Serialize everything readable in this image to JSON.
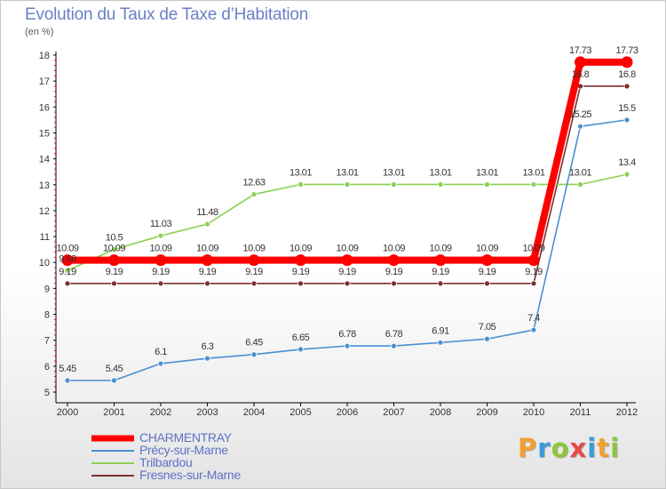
{
  "title": "Evolution du Taux de Taxe d’Habitation",
  "unit": "(en %)",
  "brand": {
    "letters": [
      "P",
      "r",
      "o",
      "x",
      "i",
      "t",
      "i"
    ],
    "colors": [
      "#f0a030",
      "#3b9ad8",
      "#8cc63e",
      "#e84a4a",
      "#3b9ad8",
      "#f0a030",
      "#8cc63e"
    ]
  },
  "chart_data": {
    "type": "line",
    "x": [
      2000,
      2001,
      2002,
      2003,
      2004,
      2005,
      2006,
      2007,
      2008,
      2009,
      2010,
      2011,
      2012
    ],
    "ylim": [
      5,
      18
    ],
    "yticks": [
      5,
      6,
      7,
      8,
      9,
      10,
      11,
      12,
      13,
      14,
      15,
      16,
      17,
      18
    ],
    "grid": false,
    "legend_position": "bottom-left",
    "series": [
      {
        "name": "Fresnes-sur-Marne",
        "color": "#7a2e2e",
        "values": [
          9.19,
          9.19,
          9.19,
          9.19,
          9.19,
          9.19,
          9.19,
          9.19,
          9.19,
          9.19,
          9.19,
          16.8,
          16.8
        ],
        "labels": [
          "9.19",
          "9.19",
          "9.19",
          "9.19",
          "9.19",
          "9.19",
          "9.19",
          "9.19",
          "9.19",
          "9.19",
          "9.19",
          "16.8",
          "16.8"
        ]
      },
      {
        "name": "Trilbardou",
        "color": "#8cd050",
        "values": [
          9.69,
          10.5,
          11.03,
          11.48,
          12.63,
          13.01,
          13.01,
          13.01,
          13.01,
          13.01,
          13.01,
          13.01,
          13.4
        ],
        "labels": [
          "9.69",
          "10.5",
          "11.03",
          "11.48",
          "12.63",
          "13.01",
          "13.01",
          "13.01",
          "13.01",
          "13.01",
          "13.01",
          "13.01",
          "13.4"
        ]
      },
      {
        "name": "Précy-sur-Marne",
        "color": "#4a8fd0",
        "values": [
          5.45,
          5.45,
          6.1,
          6.3,
          6.45,
          6.65,
          6.78,
          6.78,
          6.91,
          7.05,
          7.4,
          15.25,
          15.5
        ],
        "labels": [
          "5.45",
          "5.45",
          "6.1",
          "6.3",
          "6.45",
          "6.65",
          "6.78",
          "6.78",
          "6.91",
          "7.05",
          "7.4",
          "15.25",
          "15.5"
        ]
      },
      {
        "name": "CHARMENTRAY",
        "color": "#ff0000",
        "values": [
          10.09,
          10.09,
          10.09,
          10.09,
          10.09,
          10.09,
          10.09,
          10.09,
          10.09,
          10.09,
          10.09,
          17.73,
          17.73
        ],
        "labels": [
          "10.09",
          "10.09",
          "10.09",
          "10.09",
          "10.09",
          "10.09",
          "10.09",
          "10.09",
          "10.09",
          "10.09",
          "10.09",
          "17.73",
          "17.73"
        ]
      }
    ],
    "legend_order": [
      "CHARMENTRAY",
      "Précy-sur-Marne",
      "Trilbardou",
      "Fresnes-sur-Marne"
    ]
  }
}
